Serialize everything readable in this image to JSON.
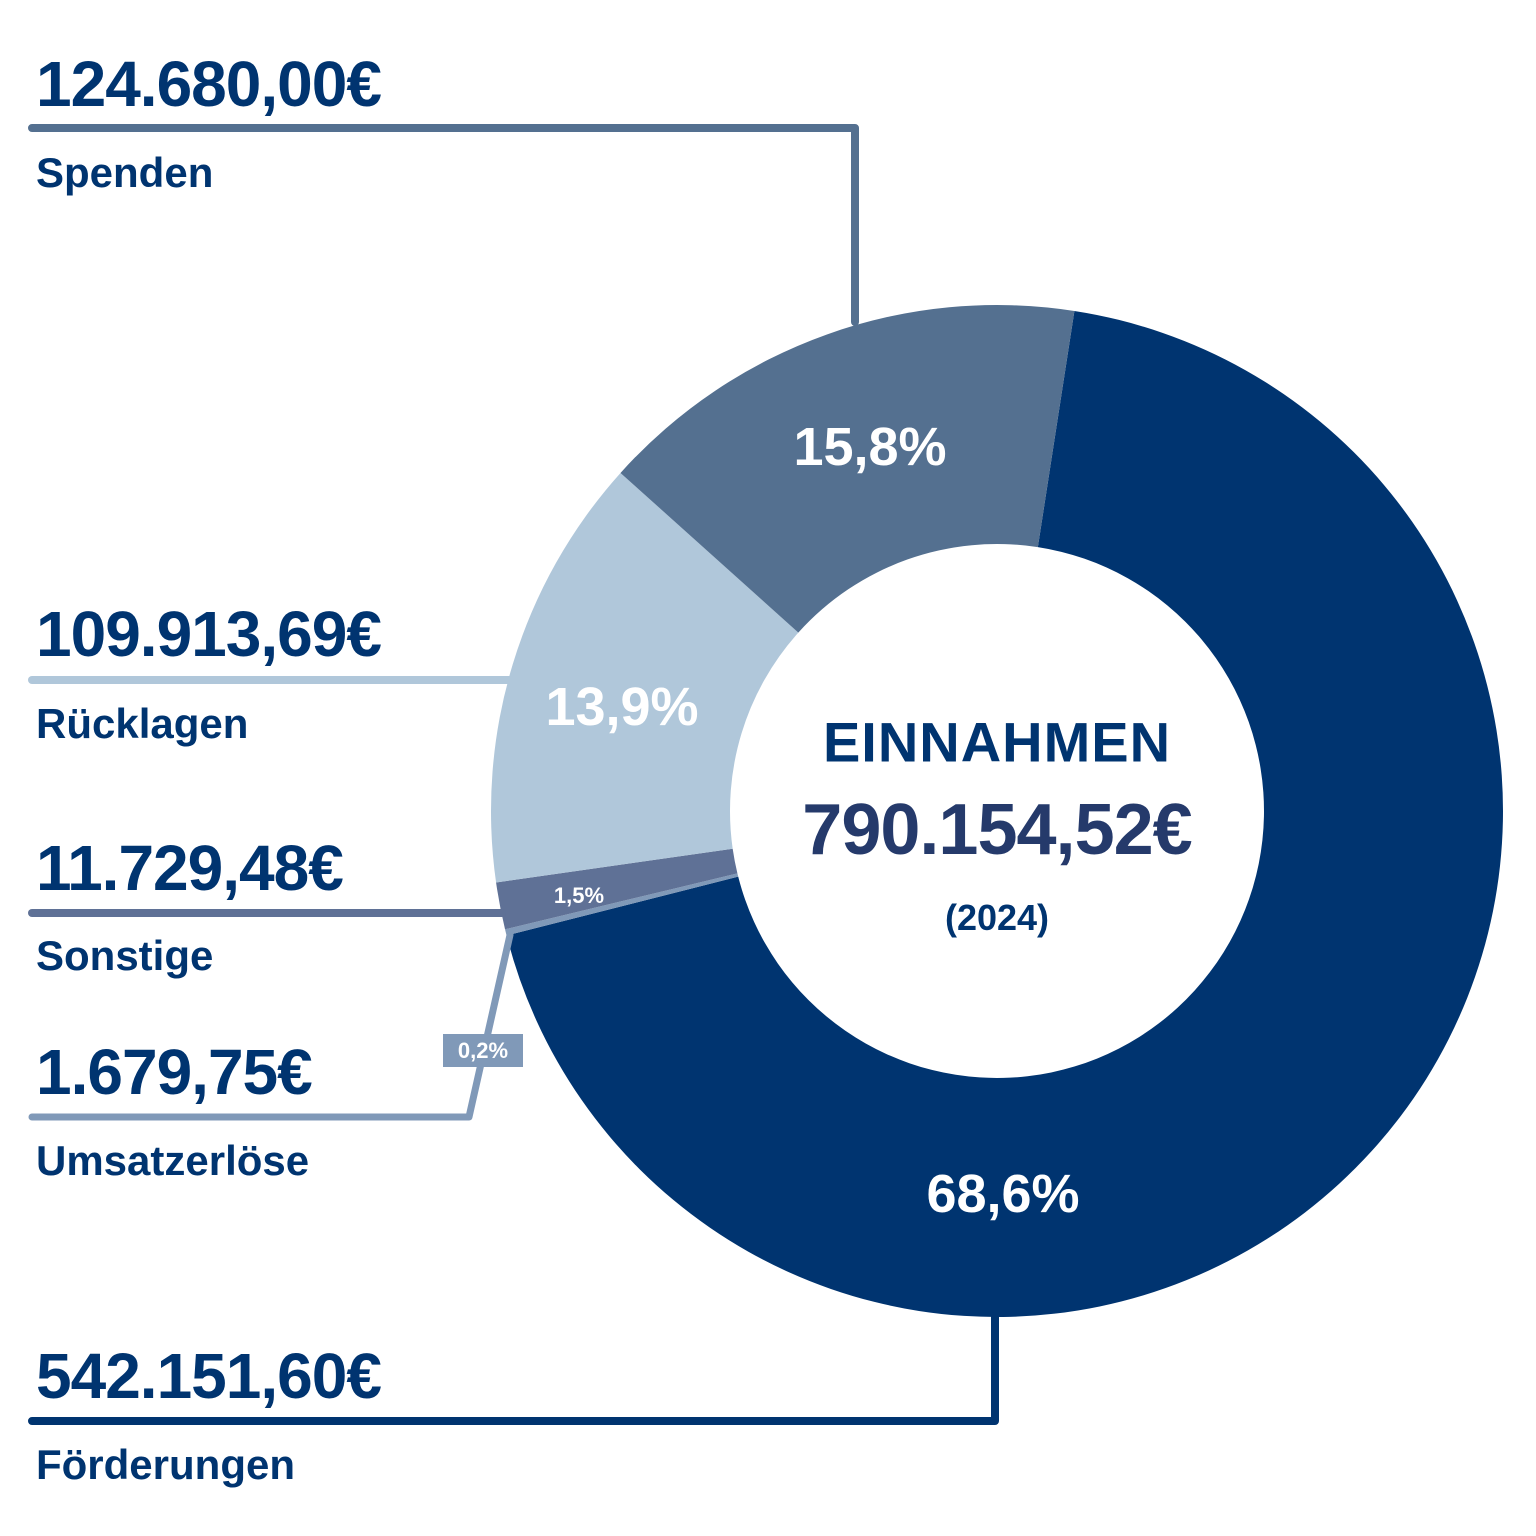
{
  "chart_data": {
    "type": "pie",
    "subtype": "donut",
    "title": "EINNAHMEN",
    "total": "790.154,52€",
    "year": "(2024)",
    "categories": [
      "Förderungen",
      "Umsatzerlöse",
      "Sonstige",
      "Rücklagen",
      "Spenden"
    ],
    "values": [
      542151.6,
      1679.75,
      11729.48,
      109913.69,
      124680.0
    ],
    "percentages": [
      68.6,
      0.2,
      1.5,
      13.9,
      15.8
    ],
    "legend_position": "left"
  },
  "colors": {
    "foerderungen": "#003470",
    "umsatzerloese": "#8099b8",
    "sonstige": "#5f7196",
    "ruecklagen": "#b0c7da",
    "spenden": "#547090",
    "text_navy": "#003470",
    "total_navy": "#253a6b"
  },
  "center": {
    "title": "EINNAHMEN",
    "total": "790.154,52€",
    "year": "(2024)"
  },
  "labels": {
    "spenden": {
      "amount": "124.680,00€",
      "name": "Spenden",
      "pct": "15,8%"
    },
    "ruecklagen": {
      "amount": "109.913,69€",
      "name": "Rücklagen",
      "pct": "13,9%"
    },
    "sonstige": {
      "amount": "11.729,48€",
      "name": "Sonstige",
      "pct": "1,5%"
    },
    "umsatzerloese": {
      "amount": "1.679,75€",
      "name": "Umsatzerlöse",
      "pct": "0,2%"
    },
    "foerderungen": {
      "amount": "542.151,60€",
      "name": "Förderungen",
      "pct": "68,6%"
    }
  }
}
